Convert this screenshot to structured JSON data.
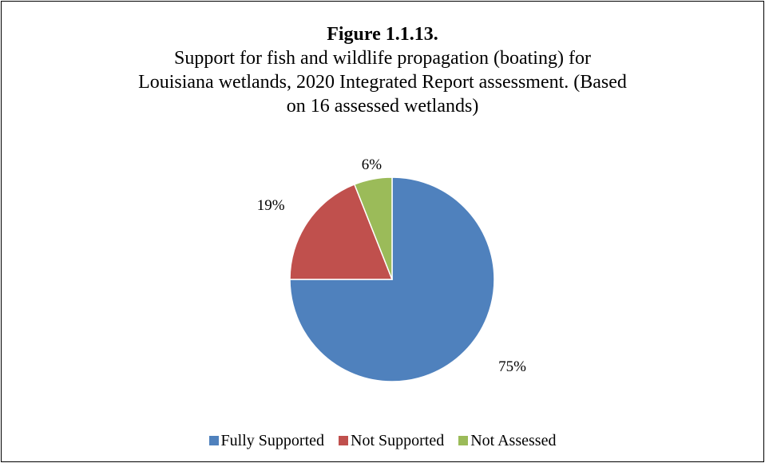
{
  "chart_data": {
    "type": "pie",
    "figure_number": "Figure 1.1.13.",
    "title_lines": [
      "Support for fish and wildlife propagation (boating) for",
      "Louisiana wetlands, 2020 Integrated Report assessment. (Based",
      "on 16 assessed wetlands)"
    ],
    "slices": [
      {
        "name": "Fully Supported",
        "value": 75,
        "label": "75%",
        "color": "#4F81BD"
      },
      {
        "name": "Not Supported",
        "value": 19,
        "label": "19%",
        "color": "#C0504D"
      },
      {
        "name": "Not Assessed",
        "value": 6,
        "label": "6%",
        "color": "#9BBB59"
      }
    ],
    "legend_position": "bottom"
  }
}
